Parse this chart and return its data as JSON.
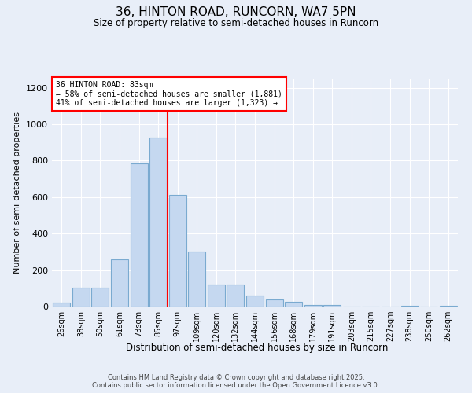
{
  "title1": "36, HINTON ROAD, RUNCORN, WA7 5PN",
  "title2": "Size of property relative to semi-detached houses in Runcorn",
  "xlabel": "Distribution of semi-detached houses by size in Runcorn",
  "ylabel": "Number of semi-detached properties",
  "bar_labels": [
    "26sqm",
    "38sqm",
    "50sqm",
    "61sqm",
    "73sqm",
    "85sqm",
    "97sqm",
    "109sqm",
    "120sqm",
    "132sqm",
    "144sqm",
    "156sqm",
    "168sqm",
    "179sqm",
    "191sqm",
    "203sqm",
    "215sqm",
    "227sqm",
    "238sqm",
    "250sqm",
    "262sqm"
  ],
  "bar_values": [
    20,
    105,
    105,
    260,
    785,
    925,
    610,
    300,
    120,
    120,
    60,
    40,
    25,
    10,
    10,
    0,
    0,
    0,
    5,
    0,
    3
  ],
  "bar_color": "#c5d8f0",
  "bar_edge_color": "#7aaad0",
  "ylim": [
    0,
    1250
  ],
  "yticks": [
    0,
    200,
    400,
    600,
    800,
    1000,
    1200
  ],
  "red_line_index": 5,
  "red_line_label1": "36 HINTON ROAD: 83sqm",
  "red_line_label2": "← 58% of semi-detached houses are smaller (1,881)",
  "red_line_label3": "41% of semi-detached houses are larger (1,323) →",
  "footer1": "Contains HM Land Registry data © Crown copyright and database right 2025.",
  "footer2": "Contains public sector information licensed under the Open Government Licence v3.0.",
  "background_color": "#e8eef8",
  "grid_color": "#ffffff"
}
